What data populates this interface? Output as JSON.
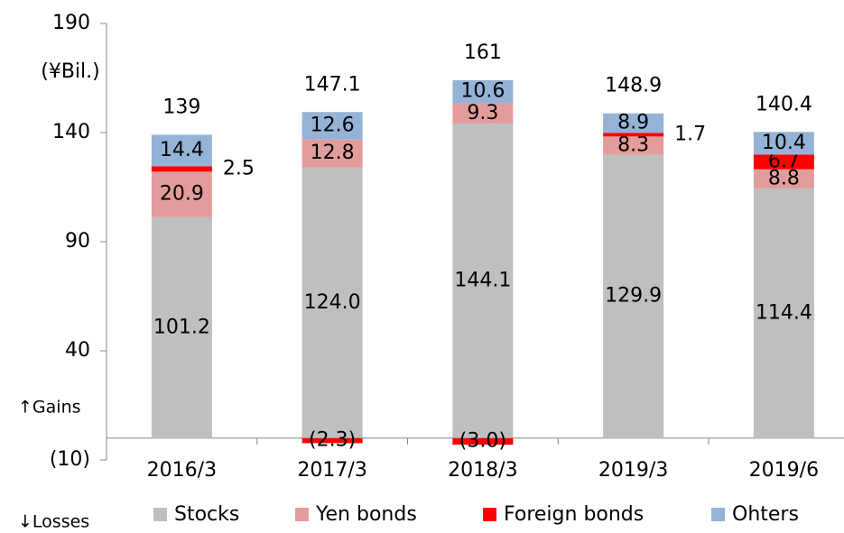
{
  "chart_data": {
    "type": "stacked-bar",
    "y_unit": "(¥Bil.)",
    "annotations": [
      "↑Gains",
      "↓Losses"
    ],
    "categories": [
      "2016/3",
      "2017/3",
      "2018/3",
      "2019/3",
      "2019/6"
    ],
    "series": [
      {
        "name": "Stocks",
        "color": "#bfbfbf",
        "values": [
          101.2,
          124.0,
          144.1,
          129.9,
          114.4
        ],
        "value_labels": [
          "101.2",
          "124.0",
          "144.1",
          "129.9",
          "114.4"
        ]
      },
      {
        "name": "Yen bonds",
        "color": "#e39c9c",
        "values": [
          20.9,
          12.8,
          9.3,
          8.3,
          8.8
        ]
      },
      {
        "name": "Foreign bonds",
        "color": "#ff0000",
        "values": [
          2.5,
          -2.3,
          -3.0,
          1.7,
          6.7
        ],
        "value_labels": [
          "2.5",
          "(2.3)",
          "(3.0)",
          "1.7",
          "6.7"
        ]
      },
      {
        "name": "Ohters",
        "color": "#95b3d7",
        "values": [
          14.4,
          12.6,
          10.6,
          8.9,
          10.4
        ]
      }
    ],
    "totals": [
      139,
      147.1,
      161,
      148.9,
      140.4
    ],
    "ylim": [
      -10,
      190
    ],
    "yticks": [
      {
        "value": -10,
        "label": "(10)"
      },
      40,
      90,
      140,
      190
    ]
  }
}
